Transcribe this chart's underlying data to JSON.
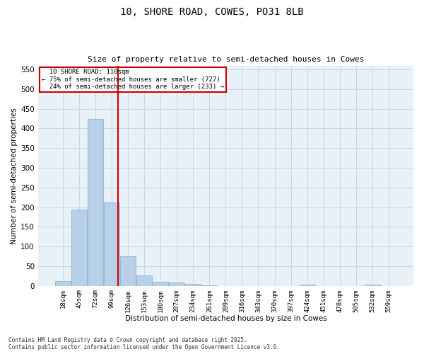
{
  "title_line1": "10, SHORE ROAD, COWES, PO31 8LB",
  "title_line2": "Size of property relative to semi-detached houses in Cowes",
  "xlabel": "Distribution of semi-detached houses by size in Cowes",
  "ylabel": "Number of semi-detached properties",
  "bar_color": "#b8d0e8",
  "bar_edge_color": "#7aaad0",
  "bar_categories": [
    "18sqm",
    "45sqm",
    "72sqm",
    "99sqm",
    "126sqm",
    "153sqm",
    "180sqm",
    "207sqm",
    "234sqm",
    "261sqm",
    "289sqm",
    "316sqm",
    "343sqm",
    "370sqm",
    "397sqm",
    "424sqm",
    "451sqm",
    "478sqm",
    "505sqm",
    "532sqm",
    "559sqm"
  ],
  "bar_values": [
    12,
    193,
    425,
    212,
    75,
    27,
    11,
    9,
    5,
    1,
    0,
    0,
    0,
    0,
    0,
    3,
    0,
    0,
    0,
    3,
    0
  ],
  "ylim": [
    0,
    560
  ],
  "yticks": [
    0,
    50,
    100,
    150,
    200,
    250,
    300,
    350,
    400,
    450,
    500,
    550
  ],
  "property_size": 110,
  "property_label": "10 SHORE ROAD: 110sqm",
  "pct_smaller": 75,
  "count_smaller": 727,
  "pct_larger": 24,
  "count_larger": 233,
  "annotation_box_color": "#ffffff",
  "annotation_box_edge": "#cc0000",
  "vline_color": "#cc0000",
  "grid_color": "#c8d8e8",
  "background_color": "#e8f0f8",
  "footer_line1": "Contains HM Land Registry data © Crown copyright and database right 2025.",
  "footer_line2": "Contains public sector information licensed under the Open Government Licence v3.0.",
  "bin_width": 27
}
